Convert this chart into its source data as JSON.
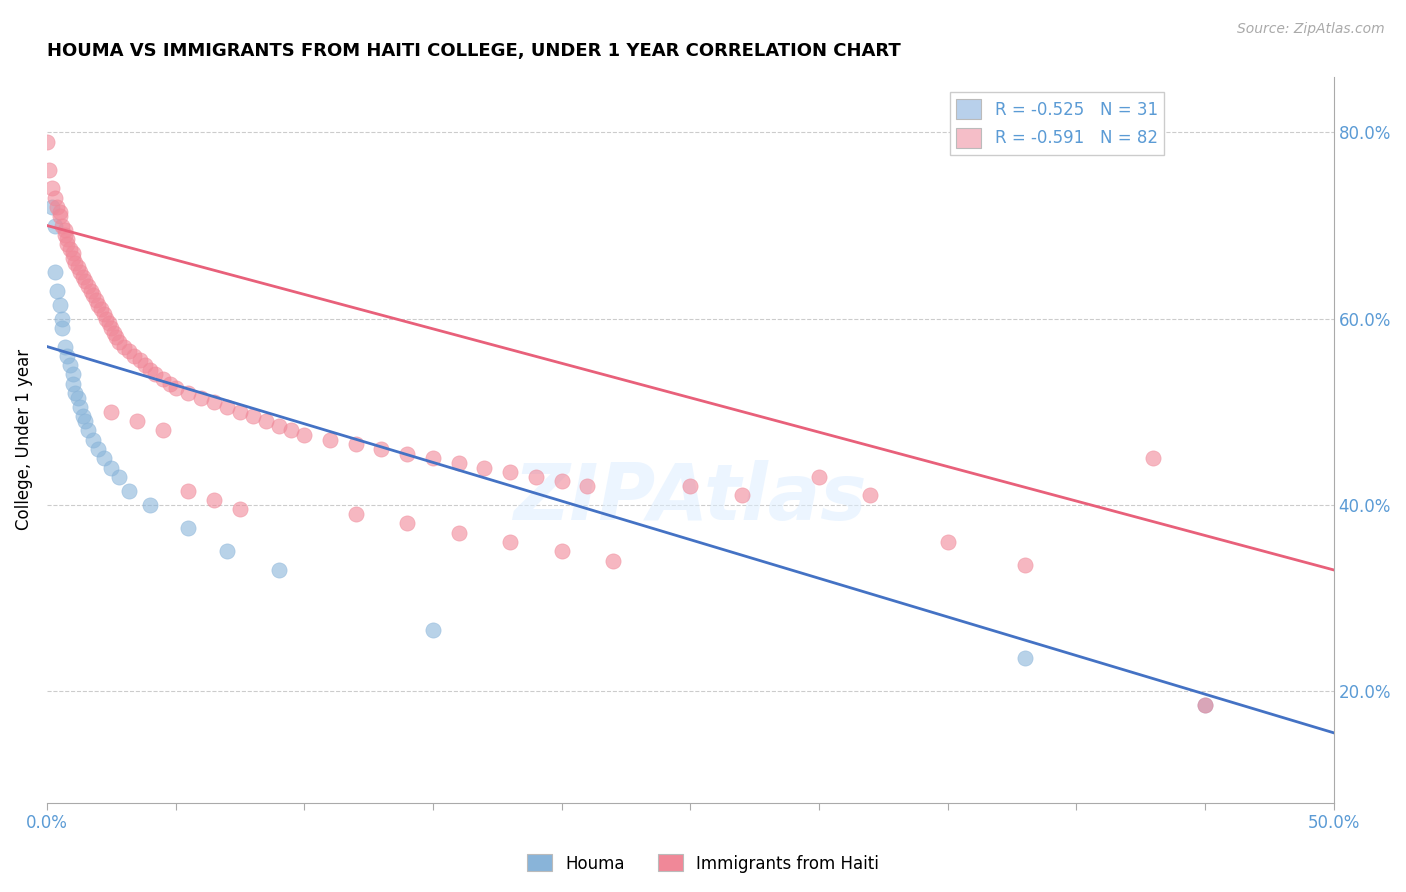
{
  "title": "HOUMA VS IMMIGRANTS FROM HAITI COLLEGE, UNDER 1 YEAR CORRELATION CHART",
  "source": "Source: ZipAtlas.com",
  "ylabel": "College, Under 1 year",
  "xlim": [
    0.0,
    0.5
  ],
  "ylim": [
    0.08,
    0.86
  ],
  "xtick_positions": [
    0.0,
    0.05,
    0.1,
    0.15,
    0.2,
    0.25,
    0.3,
    0.35,
    0.4,
    0.45,
    0.5
  ],
  "xtick_labels": [
    "0.0%",
    "",
    "",
    "",
    "",
    "",
    "",
    "",
    "",
    "",
    "50.0%"
  ],
  "ytick_right_positions": [
    0.2,
    0.4,
    0.6,
    0.8
  ],
  "ytick_right_labels": [
    "20.0%",
    "40.0%",
    "60.0%",
    "80.0%"
  ],
  "watermark": "ZIPAtlas",
  "legend_entries": [
    {
      "label": "R = -0.525   N = 31",
      "color": "#b8d0eb"
    },
    {
      "label": "R = -0.591   N = 82",
      "color": "#f5bec8"
    }
  ],
  "houma_color": "#89b4d9",
  "haiti_color": "#f08898",
  "houma_line_color": "#4472c4",
  "haiti_line_color": "#e8607a",
  "houma_scatter": [
    [
      0.002,
      0.72
    ],
    [
      0.003,
      0.7
    ],
    [
      0.003,
      0.65
    ],
    [
      0.004,
      0.63
    ],
    [
      0.005,
      0.615
    ],
    [
      0.006,
      0.6
    ],
    [
      0.006,
      0.59
    ],
    [
      0.007,
      0.57
    ],
    [
      0.008,
      0.56
    ],
    [
      0.009,
      0.55
    ],
    [
      0.01,
      0.54
    ],
    [
      0.01,
      0.53
    ],
    [
      0.011,
      0.52
    ],
    [
      0.012,
      0.515
    ],
    [
      0.013,
      0.505
    ],
    [
      0.014,
      0.495
    ],
    [
      0.015,
      0.49
    ],
    [
      0.016,
      0.48
    ],
    [
      0.018,
      0.47
    ],
    [
      0.02,
      0.46
    ],
    [
      0.022,
      0.45
    ],
    [
      0.025,
      0.44
    ],
    [
      0.028,
      0.43
    ],
    [
      0.032,
      0.415
    ],
    [
      0.04,
      0.4
    ],
    [
      0.055,
      0.375
    ],
    [
      0.07,
      0.35
    ],
    [
      0.09,
      0.33
    ],
    [
      0.15,
      0.265
    ],
    [
      0.38,
      0.235
    ],
    [
      0.45,
      0.185
    ]
  ],
  "haiti_scatter": [
    [
      0.0,
      0.79
    ],
    [
      0.001,
      0.76
    ],
    [
      0.002,
      0.74
    ],
    [
      0.003,
      0.73
    ],
    [
      0.004,
      0.72
    ],
    [
      0.005,
      0.715
    ],
    [
      0.005,
      0.71
    ],
    [
      0.006,
      0.7
    ],
    [
      0.007,
      0.695
    ],
    [
      0.007,
      0.69
    ],
    [
      0.008,
      0.685
    ],
    [
      0.008,
      0.68
    ],
    [
      0.009,
      0.675
    ],
    [
      0.01,
      0.67
    ],
    [
      0.01,
      0.665
    ],
    [
      0.011,
      0.66
    ],
    [
      0.012,
      0.655
    ],
    [
      0.013,
      0.65
    ],
    [
      0.014,
      0.645
    ],
    [
      0.015,
      0.64
    ],
    [
      0.016,
      0.635
    ],
    [
      0.017,
      0.63
    ],
    [
      0.018,
      0.625
    ],
    [
      0.019,
      0.62
    ],
    [
      0.02,
      0.615
    ],
    [
      0.021,
      0.61
    ],
    [
      0.022,
      0.605
    ],
    [
      0.023,
      0.6
    ],
    [
      0.024,
      0.595
    ],
    [
      0.025,
      0.59
    ],
    [
      0.026,
      0.585
    ],
    [
      0.027,
      0.58
    ],
    [
      0.028,
      0.575
    ],
    [
      0.03,
      0.57
    ],
    [
      0.032,
      0.565
    ],
    [
      0.034,
      0.56
    ],
    [
      0.036,
      0.555
    ],
    [
      0.038,
      0.55
    ],
    [
      0.04,
      0.545
    ],
    [
      0.042,
      0.54
    ],
    [
      0.045,
      0.535
    ],
    [
      0.048,
      0.53
    ],
    [
      0.05,
      0.525
    ],
    [
      0.055,
      0.52
    ],
    [
      0.06,
      0.515
    ],
    [
      0.065,
      0.51
    ],
    [
      0.07,
      0.505
    ],
    [
      0.075,
      0.5
    ],
    [
      0.08,
      0.495
    ],
    [
      0.085,
      0.49
    ],
    [
      0.09,
      0.485
    ],
    [
      0.095,
      0.48
    ],
    [
      0.1,
      0.475
    ],
    [
      0.11,
      0.47
    ],
    [
      0.12,
      0.465
    ],
    [
      0.13,
      0.46
    ],
    [
      0.14,
      0.455
    ],
    [
      0.15,
      0.45
    ],
    [
      0.16,
      0.445
    ],
    [
      0.17,
      0.44
    ],
    [
      0.18,
      0.435
    ],
    [
      0.19,
      0.43
    ],
    [
      0.2,
      0.425
    ],
    [
      0.21,
      0.42
    ],
    [
      0.025,
      0.5
    ],
    [
      0.035,
      0.49
    ],
    [
      0.045,
      0.48
    ],
    [
      0.055,
      0.415
    ],
    [
      0.065,
      0.405
    ],
    [
      0.075,
      0.395
    ],
    [
      0.12,
      0.39
    ],
    [
      0.14,
      0.38
    ],
    [
      0.16,
      0.37
    ],
    [
      0.18,
      0.36
    ],
    [
      0.2,
      0.35
    ],
    [
      0.22,
      0.34
    ],
    [
      0.3,
      0.43
    ],
    [
      0.32,
      0.41
    ],
    [
      0.35,
      0.36
    ],
    [
      0.38,
      0.335
    ],
    [
      0.43,
      0.45
    ],
    [
      0.45,
      0.185
    ],
    [
      0.25,
      0.42
    ],
    [
      0.27,
      0.41
    ]
  ],
  "houma_line": {
    "x0": 0.0,
    "y0": 0.57,
    "x1": 0.5,
    "y1": 0.155
  },
  "haiti_line": {
    "x0": 0.0,
    "y0": 0.7,
    "x1": 0.5,
    "y1": 0.33
  }
}
